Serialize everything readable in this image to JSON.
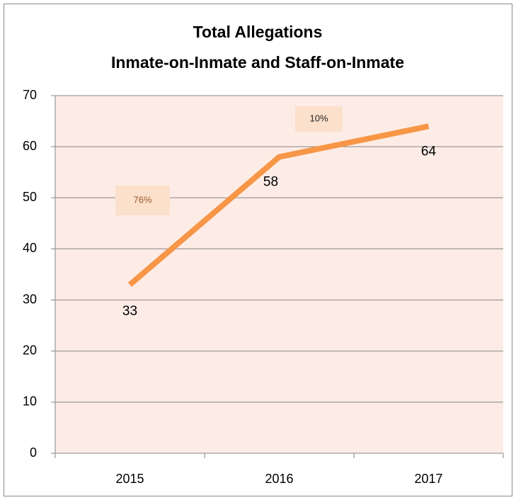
{
  "chart_data": {
    "type": "line",
    "title": "Total Allegations",
    "subtitle": "Inmate-on-Inmate and Staff-on-Inmate",
    "categories": [
      "2015",
      "2016",
      "2017"
    ],
    "values": [
      33,
      58,
      64
    ],
    "color": "#f79646",
    "ylim": [
      0,
      70
    ],
    "yticks": [
      0,
      10,
      20,
      30,
      40,
      50,
      60,
      70
    ],
    "grid": true,
    "annotations": [
      "76%",
      "10%"
    ]
  }
}
